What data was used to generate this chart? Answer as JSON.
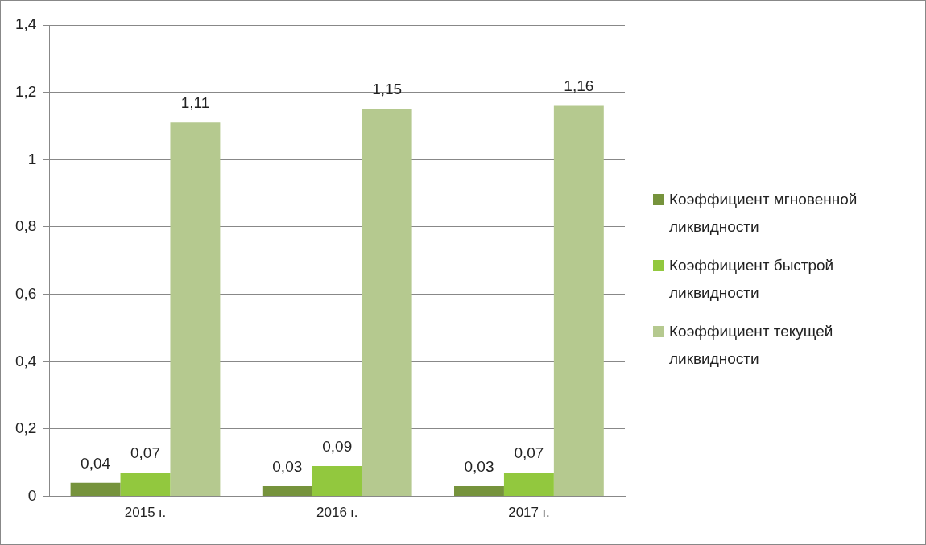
{
  "chart_data": {
    "type": "bar",
    "categories": [
      "2015 г.",
      "2016 г.",
      "2017 г."
    ],
    "series": [
      {
        "name": "Коэффициент мгновенной ликвидности",
        "color": "#76933c",
        "values": [
          0.04,
          0.03,
          0.03
        ],
        "value_labels": [
          "0,04",
          "0,03",
          "0,03"
        ]
      },
      {
        "name": "Коэффициент быстрой ликвидности",
        "color": "#92c83e",
        "values": [
          0.07,
          0.09,
          0.07
        ],
        "value_labels": [
          "0,07",
          "0,09",
          "0,07"
        ]
      },
      {
        "name": "Коэффициент текущей ликвидности",
        "color": "#b5c98f",
        "values": [
          1.11,
          1.15,
          1.16
        ],
        "value_labels": [
          "1,11",
          "1,15",
          "1,16"
        ]
      }
    ],
    "ylim": [
      0,
      1.4
    ],
    "yticks": [
      0,
      {
        "value": 0.2,
        "label": "0,2"
      },
      {
        "value": 0.4,
        "label": "0,4"
      },
      {
        "value": 0.6,
        "label": "0,6"
      },
      {
        "value": 0.8,
        "label": "0,8"
      },
      1,
      {
        "value": 1.2,
        "label": "1,2"
      },
      {
        "value": 1.4,
        "label": "1,4"
      }
    ],
    "grid": "y",
    "legend": "right"
  }
}
